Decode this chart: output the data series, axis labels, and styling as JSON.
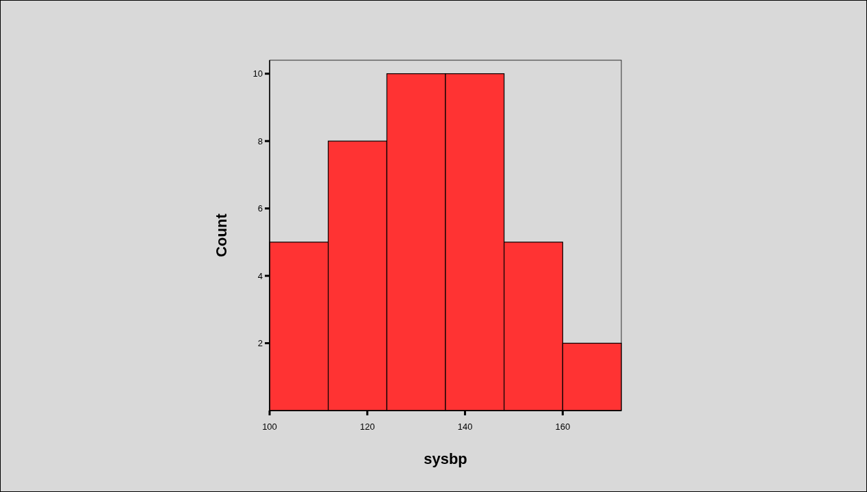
{
  "chart_data": {
    "type": "histogram",
    "xlabel": "sysbp",
    "ylabel": "Count",
    "bins": [
      100,
      112,
      124,
      136,
      148,
      160,
      172
    ],
    "values": [
      5,
      8,
      10,
      10,
      5,
      2
    ],
    "color": "#ff3333",
    "xlim": [
      100,
      172
    ],
    "xticks": [
      100,
      120,
      140,
      160
    ],
    "ylim": [
      0,
      10.4
    ],
    "yticks": [
      2,
      4,
      6,
      8,
      10
    ],
    "grid": false
  }
}
